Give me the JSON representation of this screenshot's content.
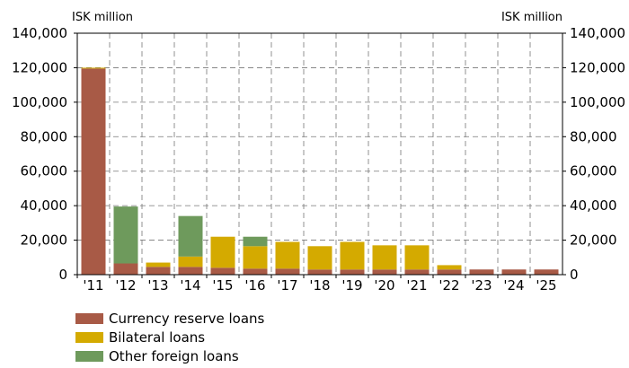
{
  "chart_data": {
    "type": "bar",
    "stacked": true,
    "categories": [
      "'11",
      "'12",
      "'13",
      "'14",
      "'15",
      "'16",
      "'17",
      "'18",
      "'19",
      "'20",
      "'21",
      "'22",
      "'23",
      "'24",
      "'25"
    ],
    "series": [
      {
        "name": "Currency reserve loans",
        "color": "#a85a46",
        "values": [
          119500,
          6500,
          4500,
          4500,
          4000,
          3500,
          3500,
          3000,
          3000,
          3000,
          3000,
          3000,
          3000,
          3000,
          3000
        ]
      },
      {
        "name": "Bilateral loans",
        "color": "#d4aa00",
        "values": [
          500,
          0,
          2500,
          6000,
          18000,
          13000,
          15500,
          13500,
          16000,
          14000,
          14000,
          2500,
          0,
          0,
          0
        ]
      },
      {
        "name": "Other foreign loans",
        "color": "#6e9a5c",
        "values": [
          0,
          33000,
          0,
          23500,
          0,
          5500,
          0,
          0,
          0,
          0,
          0,
          0,
          0,
          0,
          0
        ]
      }
    ],
    "ylim": [
      0,
      140000
    ],
    "yticks": [
      0,
      20000,
      40000,
      60000,
      80000,
      100000,
      120000,
      140000
    ],
    "ytick_labels": [
      "0",
      "20,000",
      "40,000",
      "60,000",
      "80,000",
      "100,000",
      "120,000",
      "140,000"
    ],
    "ylabel_left": "ISK million",
    "ylabel_right": "ISK million",
    "grid": true,
    "legend_position": "bottom-left"
  }
}
